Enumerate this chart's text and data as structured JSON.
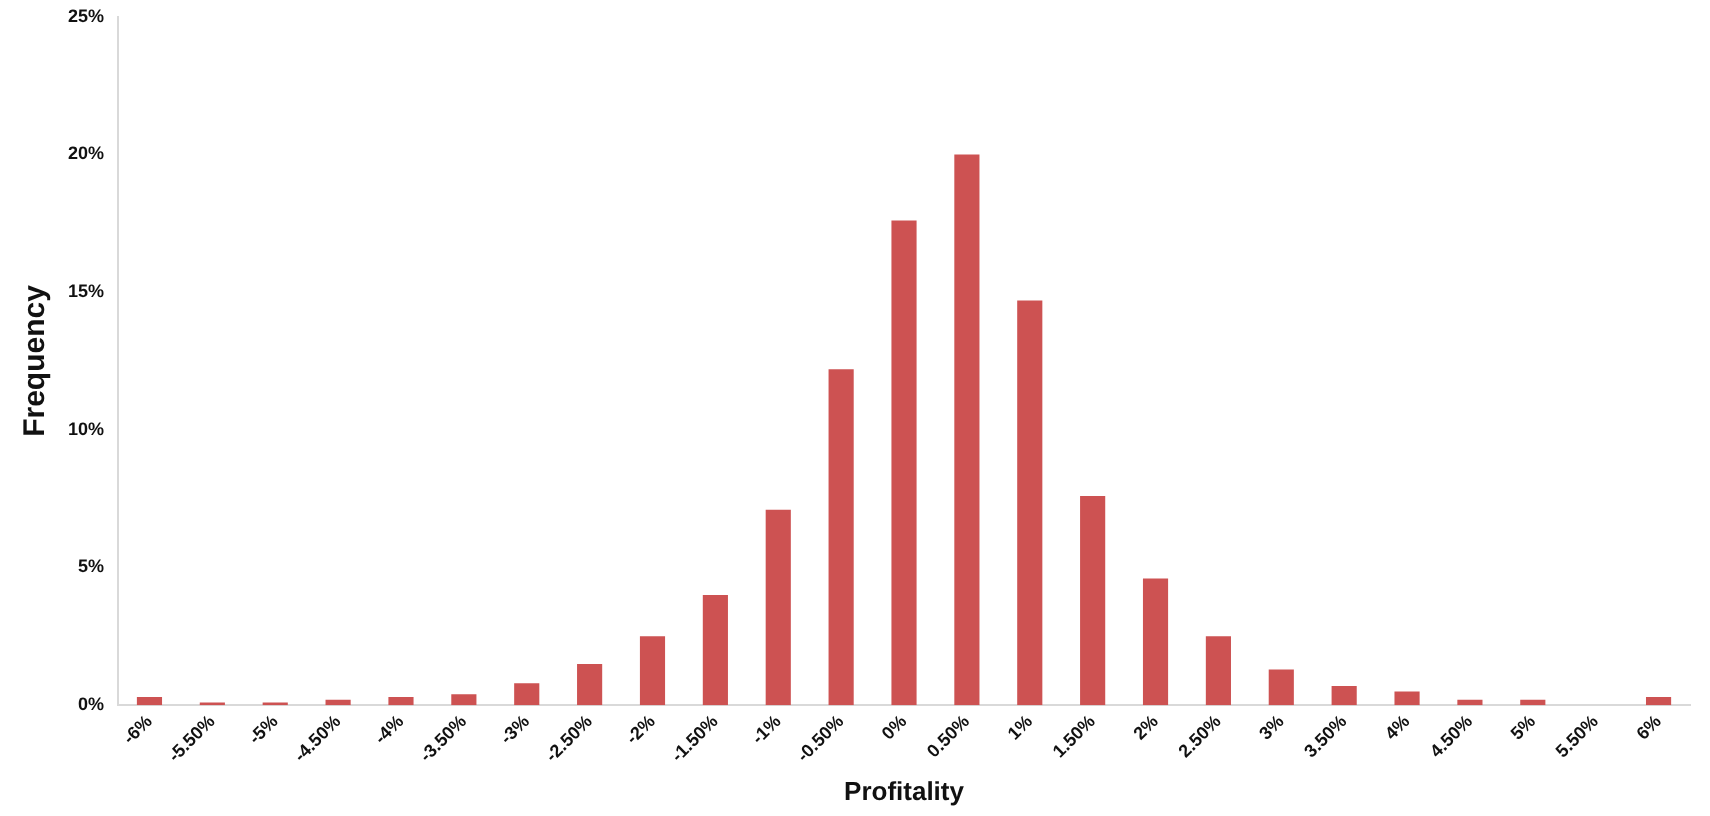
{
  "chart_data": {
    "type": "bar",
    "xlabel": "Profitality",
    "ylabel": "Frequency",
    "categories": [
      "-6%",
      "-5.50%",
      "-5%",
      "-4.50%",
      "-4%",
      "-3.50%",
      "-3%",
      "-2.50%",
      "-2%",
      "-1.50%",
      "-1%",
      "-0.50%",
      "0%",
      "0.50%",
      "1%",
      "1.50%",
      "2%",
      "2.50%",
      "3%",
      "3.50%",
      "4%",
      "4.50%",
      "5%",
      "5.50%",
      "6%"
    ],
    "values": [
      0.3,
      0.1,
      0.1,
      0.2,
      0.3,
      0.4,
      0.8,
      1.5,
      2.5,
      4.0,
      7.1,
      12.2,
      17.6,
      20.0,
      14.7,
      7.6,
      4.6,
      2.5,
      1.3,
      0.7,
      0.5,
      0.2,
      0.2,
      0,
      0.3
    ],
    "color": "#cd5252",
    "ylim": [
      0,
      25
    ],
    "yticks": [
      {
        "value": 0,
        "label": "0%"
      },
      {
        "value": 5,
        "label": "5%"
      },
      {
        "value": 10,
        "label": "10%"
      },
      {
        "value": 15,
        "label": "15%"
      },
      {
        "value": 20,
        "label": "20%"
      },
      {
        "value": 25,
        "label": "25%"
      }
    ],
    "grid": false,
    "legend": false
  }
}
